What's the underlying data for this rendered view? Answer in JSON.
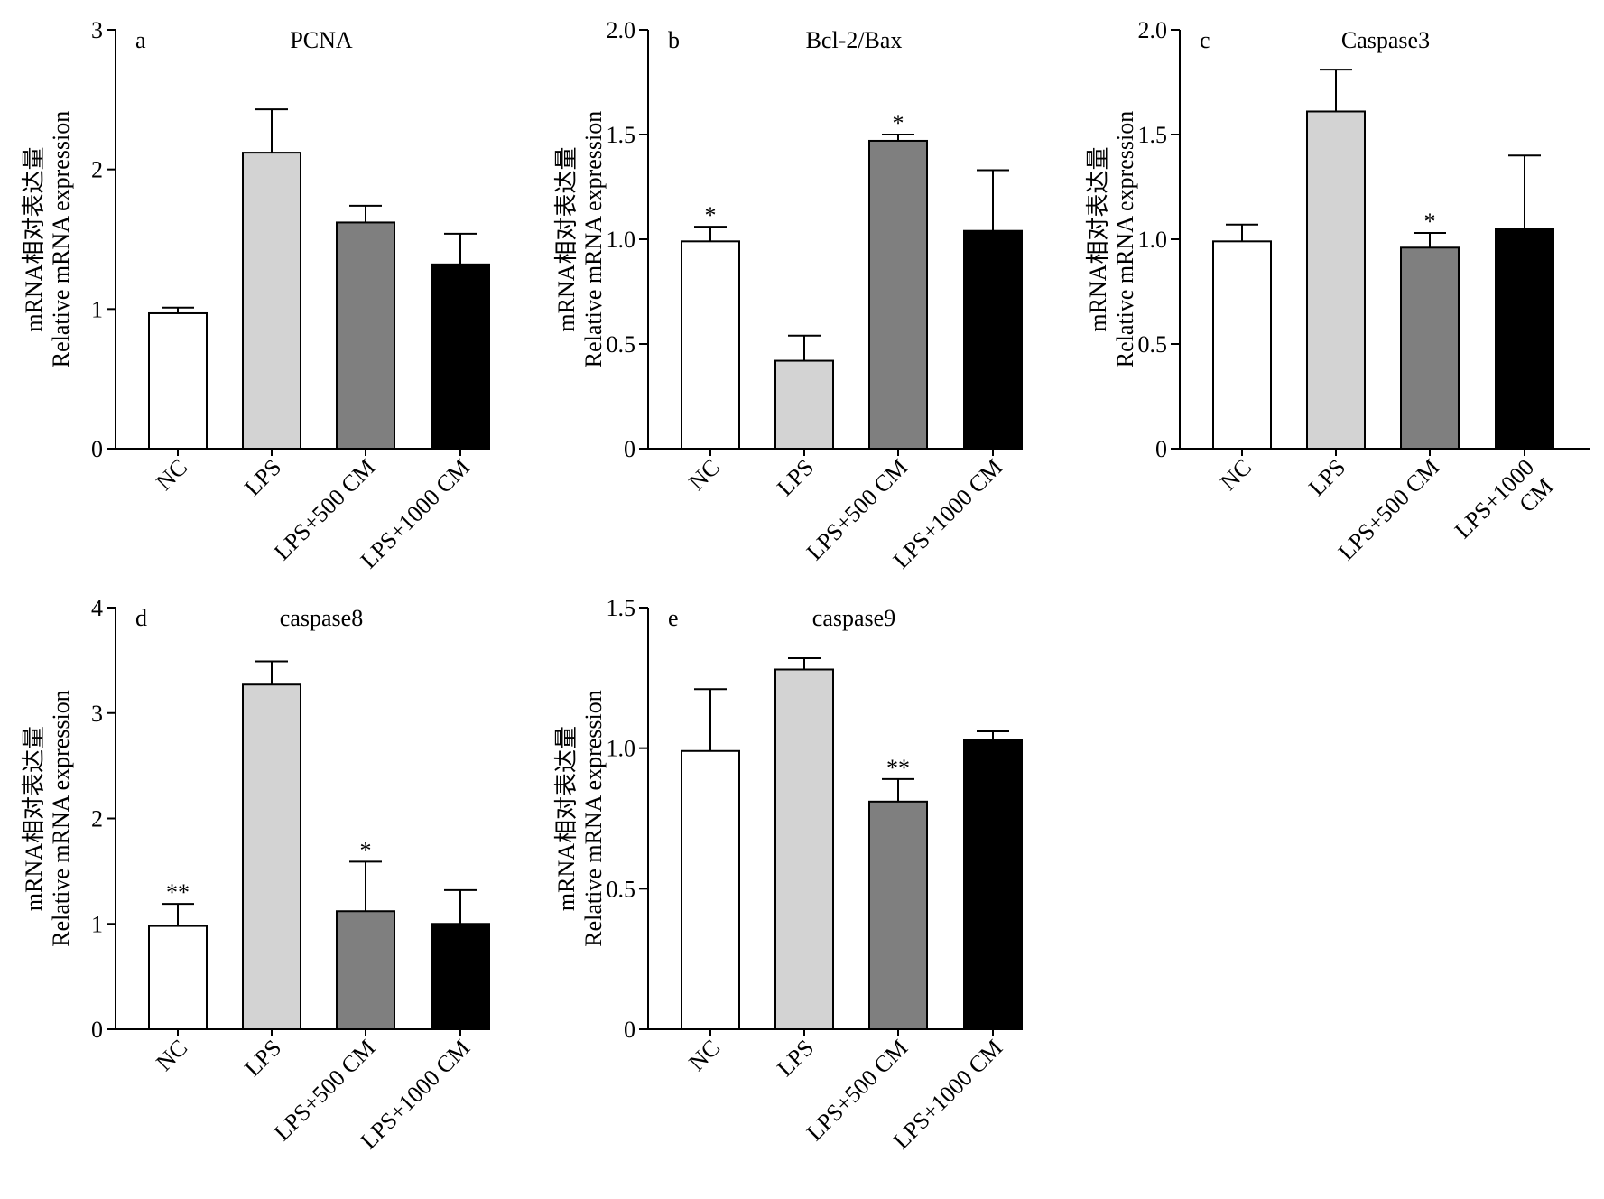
{
  "figure": {
    "colors": {
      "NC": "#ffffff",
      "LPS": "#d3d3d3",
      "LPS+500 CM": "#7f7f7f",
      "LPS+1000 CM": "#000000"
    },
    "y_label_cn": "mRNA相对表达量",
    "y_label_en": "Relative mRNA expression"
  },
  "chart_data": [
    {
      "panel": "a",
      "type": "bar",
      "title": "PCNA",
      "ylabel": [
        "mRNA相对表达量",
        "Relative mRNA expression"
      ],
      "categories": [
        "NC",
        "LPS",
        "LPS+500 CM",
        "LPS+1000 CM"
      ],
      "category_label_lines": [
        [
          "NC"
        ],
        [
          "LPS"
        ],
        [
          "LPS+500 CM"
        ],
        [
          "LPS+1000 CM"
        ]
      ],
      "values": [
        0.97,
        2.12,
        1.62,
        1.32
      ],
      "errors": [
        0.04,
        0.31,
        0.12,
        0.22
      ],
      "significance": [
        "",
        "",
        "",
        ""
      ],
      "ylim": [
        0,
        3
      ],
      "yticks": [
        0,
        1,
        2,
        3
      ],
      "ytick_labels": [
        "0",
        "1",
        "2",
        "3"
      ]
    },
    {
      "panel": "b",
      "type": "bar",
      "title": "Bcl-2/Bax",
      "ylabel": [
        "mRNA相对表达量",
        "Relative mRNA expression"
      ],
      "categories": [
        "NC",
        "LPS",
        "LPS+500 CM",
        "LPS+1000 CM"
      ],
      "category_label_lines": [
        [
          "NC"
        ],
        [
          "LPS"
        ],
        [
          "LPS+500 CM"
        ],
        [
          "LPS+1000 CM"
        ]
      ],
      "values": [
        0.99,
        0.42,
        1.47,
        1.04
      ],
      "errors": [
        0.07,
        0.12,
        0.03,
        0.29
      ],
      "significance": [
        "*",
        "",
        "*",
        ""
      ],
      "ylim": [
        0,
        2.0
      ],
      "yticks": [
        0,
        0.5,
        1.0,
        1.5,
        2.0
      ],
      "ytick_labels": [
        "0",
        "0.5",
        "1.0",
        "1.5",
        "2.0"
      ]
    },
    {
      "panel": "c",
      "type": "bar",
      "title": "Caspase3",
      "ylabel": [
        "mRNA相对表达量",
        "Relative mRNA expression"
      ],
      "categories": [
        "NC",
        "LPS",
        "LPS+500 CM",
        "LPS+1000 CM"
      ],
      "category_label_lines": [
        [
          "NC"
        ],
        [
          "LPS"
        ],
        [
          "LPS+500 CM"
        ],
        [
          "LPS+1000",
          "CM"
        ]
      ],
      "values": [
        0.99,
        1.61,
        0.96,
        1.05
      ],
      "errors": [
        0.08,
        0.2,
        0.07,
        0.35
      ],
      "significance": [
        "",
        "",
        "*",
        ""
      ],
      "ylim": [
        0,
        2.0
      ],
      "yticks": [
        0,
        0.5,
        1.0,
        1.5,
        2.0
      ],
      "ytick_labels": [
        "0",
        "0.5",
        "1.0",
        "1.5",
        "2.0"
      ]
    },
    {
      "panel": "d",
      "type": "bar",
      "title": "caspase8",
      "ylabel": [
        "mRNA相对表达量",
        "Relative mRNA expression"
      ],
      "categories": [
        "NC",
        "LPS",
        "LPS+500 CM",
        "LPS+1000 CM"
      ],
      "category_label_lines": [
        [
          "NC"
        ],
        [
          "LPS"
        ],
        [
          "LPS+500 CM"
        ],
        [
          "LPS+1000 CM"
        ]
      ],
      "values": [
        0.98,
        3.27,
        1.12,
        1.0
      ],
      "errors": [
        0.21,
        0.22,
        0.47,
        0.32
      ],
      "significance": [
        "**",
        "",
        "*",
        ""
      ],
      "ylim": [
        0,
        4
      ],
      "yticks": [
        0,
        1,
        2,
        3,
        4
      ],
      "ytick_labels": [
        "0",
        "1",
        "2",
        "3",
        "4"
      ]
    },
    {
      "panel": "e",
      "type": "bar",
      "title": "caspase9",
      "ylabel": [
        "mRNA相对表达量",
        "Relative mRNA expression"
      ],
      "categories": [
        "NC",
        "LPS",
        "LPS+500 CM",
        "LPS+1000 CM"
      ],
      "category_label_lines": [
        [
          "NC"
        ],
        [
          "LPS"
        ],
        [
          "LPS+500 CM"
        ],
        [
          "LPS+1000 CM"
        ]
      ],
      "values": [
        0.99,
        1.28,
        0.81,
        1.03
      ],
      "errors": [
        0.22,
        0.04,
        0.08,
        0.03
      ],
      "significance": [
        "",
        "",
        "**",
        ""
      ],
      "ylim": [
        0,
        1.5
      ],
      "yticks": [
        0,
        0.5,
        1.0,
        1.5
      ],
      "ytick_labels": [
        "0",
        "0.5",
        "1.0",
        "1.5"
      ]
    }
  ]
}
